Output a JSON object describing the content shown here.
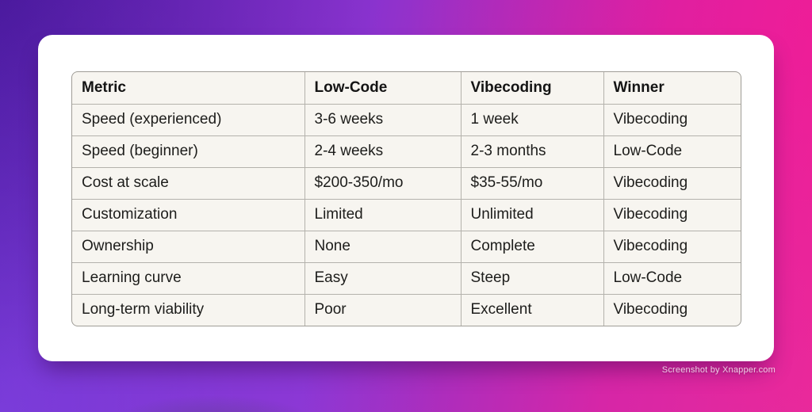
{
  "colors": {
    "bg_gradient_top_left": "#5a20b5",
    "bg_gradient_top_right": "#ec1d95",
    "bg_gradient_bottom_left": "#7c42e0",
    "bg_gradient_bottom_right": "#e14dad",
    "card_background": "#ffffff",
    "table_background": "#f7f5f0",
    "table_outer_border": "#9f9d97",
    "table_grid_line": "#b4b2ac",
    "text_color": "#1d1d1b"
  },
  "watermark": {
    "label": "Screenshot by Xnapper.com"
  },
  "chart_data": {
    "type": "table",
    "title": "",
    "columns": [
      "Metric",
      "Low-Code",
      "Vibecoding",
      "Winner"
    ],
    "rows": [
      [
        "Speed (experienced)",
        "3-6 weeks",
        "1 week",
        "Vibecoding"
      ],
      [
        "Speed (beginner)",
        "2-4 weeks",
        "2-3 months",
        "Low-Code"
      ],
      [
        "Cost at scale",
        "$200-350/mo",
        "$35-55/mo",
        "Vibecoding"
      ],
      [
        "Customization",
        "Limited",
        "Unlimited",
        "Vibecoding"
      ],
      [
        "Ownership",
        "None",
        "Complete",
        "Vibecoding"
      ],
      [
        "Learning curve",
        "Easy",
        "Steep",
        "Low-Code"
      ],
      [
        "Long-term viability",
        "Poor",
        "Excellent",
        "Vibecoding"
      ]
    ]
  }
}
